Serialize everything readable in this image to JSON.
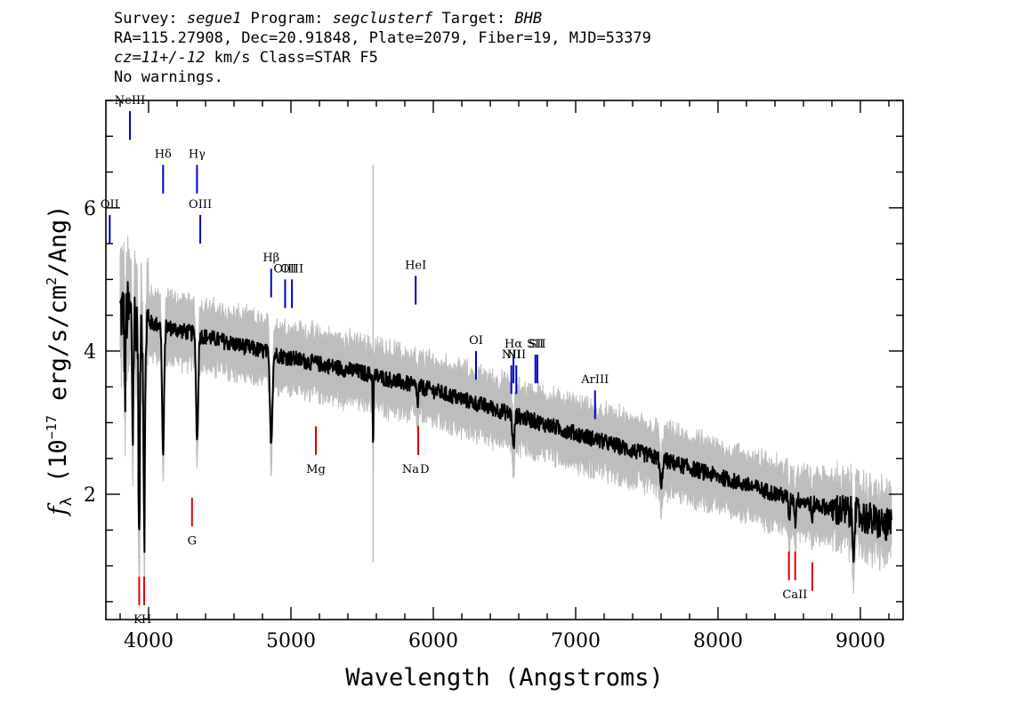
{
  "header": {
    "line1": {
      "survey_label": "Survey: ",
      "survey": "segue1",
      "program_label": " Program: ",
      "program": "segclusterf",
      "target_label": " Target: ",
      "target": "BHB"
    },
    "line2": "RA=115.27908, Dec=20.91848, Plate=2079, Fiber=19, MJD=53379",
    "line3": {
      "cz": "cz=11+/-12",
      "rest": " km/s Class=STAR F5"
    },
    "line4": "No warnings."
  },
  "chart_data": {
    "type": "line",
    "xlabel": "Wavelength (Angstroms)",
    "ylabel": "f_λ (10^-17 erg/s/cm^2/Ang)",
    "ylabel_parts": {
      "f": "f",
      "sub": "λ",
      "a": " (10",
      "e1": "−17",
      "b": " erg/s/cm",
      "e2": "2",
      "c": "/Ang)"
    },
    "xlim": [
      3700,
      9300
    ],
    "ylim": [
      0.25,
      7.5
    ],
    "xticks": [
      4000,
      5000,
      6000,
      7000,
      8000,
      9000
    ],
    "yticks": [
      2,
      4,
      6
    ],
    "colors": {
      "flux": "#000000",
      "error": "#bdbdbd",
      "emission": "#0000cc",
      "absorption": "#dd0000"
    },
    "continuum": [
      [
        3800,
        4.55
      ],
      [
        4000,
        4.4
      ],
      [
        4500,
        4.15
      ],
      [
        5000,
        3.9
      ],
      [
        5500,
        3.7
      ],
      [
        6000,
        3.45
      ],
      [
        6500,
        3.15
      ],
      [
        7000,
        2.85
      ],
      [
        7500,
        2.55
      ],
      [
        8000,
        2.25
      ],
      [
        8500,
        1.95
      ],
      [
        9000,
        1.7
      ],
      [
        9200,
        1.55
      ]
    ],
    "absorption_features": [
      {
        "x": 3835,
        "depth": 1.2,
        "w": 5
      },
      {
        "x": 3889,
        "depth": 1.6,
        "w": 6
      },
      {
        "x": 3934,
        "depth": 3.3,
        "w": 7
      },
      {
        "x": 3970,
        "depth": 2.8,
        "w": 8
      },
      {
        "x": 4102,
        "depth": 1.8,
        "w": 10
      },
      {
        "x": 4341,
        "depth": 1.5,
        "w": 10
      },
      {
        "x": 4861,
        "depth": 1.2,
        "w": 12
      },
      {
        "x": 5577,
        "depth": 1.0,
        "w": 4
      },
      {
        "x": 5890,
        "depth": 0.3,
        "w": 6
      },
      {
        "x": 6563,
        "depth": 0.5,
        "w": 10
      },
      {
        "x": 7600,
        "depth": 0.45,
        "w": 10
      },
      {
        "x": 8500,
        "depth": 0.35,
        "w": 6
      },
      {
        "x": 8542,
        "depth": 0.35,
        "w": 6
      },
      {
        "x": 8662,
        "depth": 0.3,
        "w": 6
      },
      {
        "x": 8950,
        "depth": 0.5,
        "w": 8
      }
    ],
    "emission_lines": [
      {
        "label": "OII",
        "x": 3727,
        "y_bottom": 5.5,
        "y_top": 5.9,
        "ty": 6.0
      },
      {
        "label": "NeIII",
        "x": 3869,
        "y_bottom": 6.95,
        "y_top": 7.35,
        "ty": 7.45
      },
      {
        "label": "Hδ",
        "x": 4102,
        "y_bottom": 6.2,
        "y_top": 6.6,
        "ty": 6.7
      },
      {
        "label": "Hγ",
        "x": 4340,
        "y_bottom": 6.2,
        "y_top": 6.6,
        "ty": 6.7
      },
      {
        "label": "OIII",
        "x": 4363,
        "y_bottom": 5.5,
        "y_top": 5.9,
        "ty": 6.0
      },
      {
        "label": "Hβ",
        "x": 4861,
        "y_bottom": 4.75,
        "y_top": 5.15,
        "ty": 5.25
      },
      {
        "label": "OIII",
        "x": 4959,
        "y_bottom": 4.6,
        "y_top": 5.0,
        "ty": 5.1
      },
      {
        "label": "OIII",
        "x": 5007,
        "y_bottom": 4.6,
        "y_top": 5.0,
        "ty": 5.1
      },
      {
        "label": "HeI",
        "x": 5876,
        "y_bottom": 4.65,
        "y_top": 5.05,
        "ty": 5.15
      },
      {
        "label": "OI",
        "x": 6300,
        "y_bottom": 3.6,
        "y_top": 4.0,
        "ty": 4.1
      },
      {
        "label": "NII",
        "x": 6548,
        "y_bottom": 3.4,
        "y_top": 3.8,
        "ty": 3.9
      },
      {
        "label": "Hα",
        "x": 6563,
        "y_bottom": 3.55,
        "y_top": 3.95,
        "ty": 4.05
      },
      {
        "label": "NII",
        "x": 6583,
        "y_bottom": 3.4,
        "y_top": 3.8,
        "ty": 3.9
      },
      {
        "label": "SII",
        "x": 6717,
        "y_bottom": 3.55,
        "y_top": 3.95,
        "ty": 4.05
      },
      {
        "label": "SII",
        "x": 6731,
        "y_bottom": 3.55,
        "y_top": 3.95,
        "ty": 4.05
      },
      {
        "label": "ArIII",
        "x": 7136,
        "y_bottom": 3.05,
        "y_top": 3.45,
        "ty": 3.55
      }
    ],
    "absorption_lines": [
      {
        "label": "K",
        "x": 3934,
        "y_bottom": 0.45,
        "y_top": 0.85,
        "ty": 0.2
      },
      {
        "label": "H",
        "x": 3969,
        "y_bottom": 0.45,
        "y_top": 0.85,
        "ty": 0.2
      },
      {
        "label": "G",
        "x": 4305,
        "y_bottom": 1.55,
        "y_top": 1.95,
        "ty": 1.3
      },
      {
        "label": "Mg",
        "x": 5175,
        "y_bottom": 2.55,
        "y_top": 2.95,
        "ty": 2.3
      },
      {
        "label": "Na",
        "x": 5894,
        "y_bottom": 2.55,
        "y_top": 2.95,
        "ty": 2.3
      },
      {
        "label": "D",
        "x": 5894,
        "y_bottom": 2.55,
        "y_top": 2.95,
        "ty": 2.3
      },
      {
        "label": "CaII",
        "x": 8498,
        "y_bottom": 0.8,
        "y_top": 1.2,
        "ty": 0.55
      },
      {
        "label": "CaII",
        "x": 8542,
        "y_bottom": 0.8,
        "y_top": 1.2,
        "ty": 0.55
      },
      {
        "label": "CaII",
        "x": 8662,
        "y_bottom": 0.65,
        "y_top": 1.05,
        "ty": 0.55
      }
    ]
  }
}
